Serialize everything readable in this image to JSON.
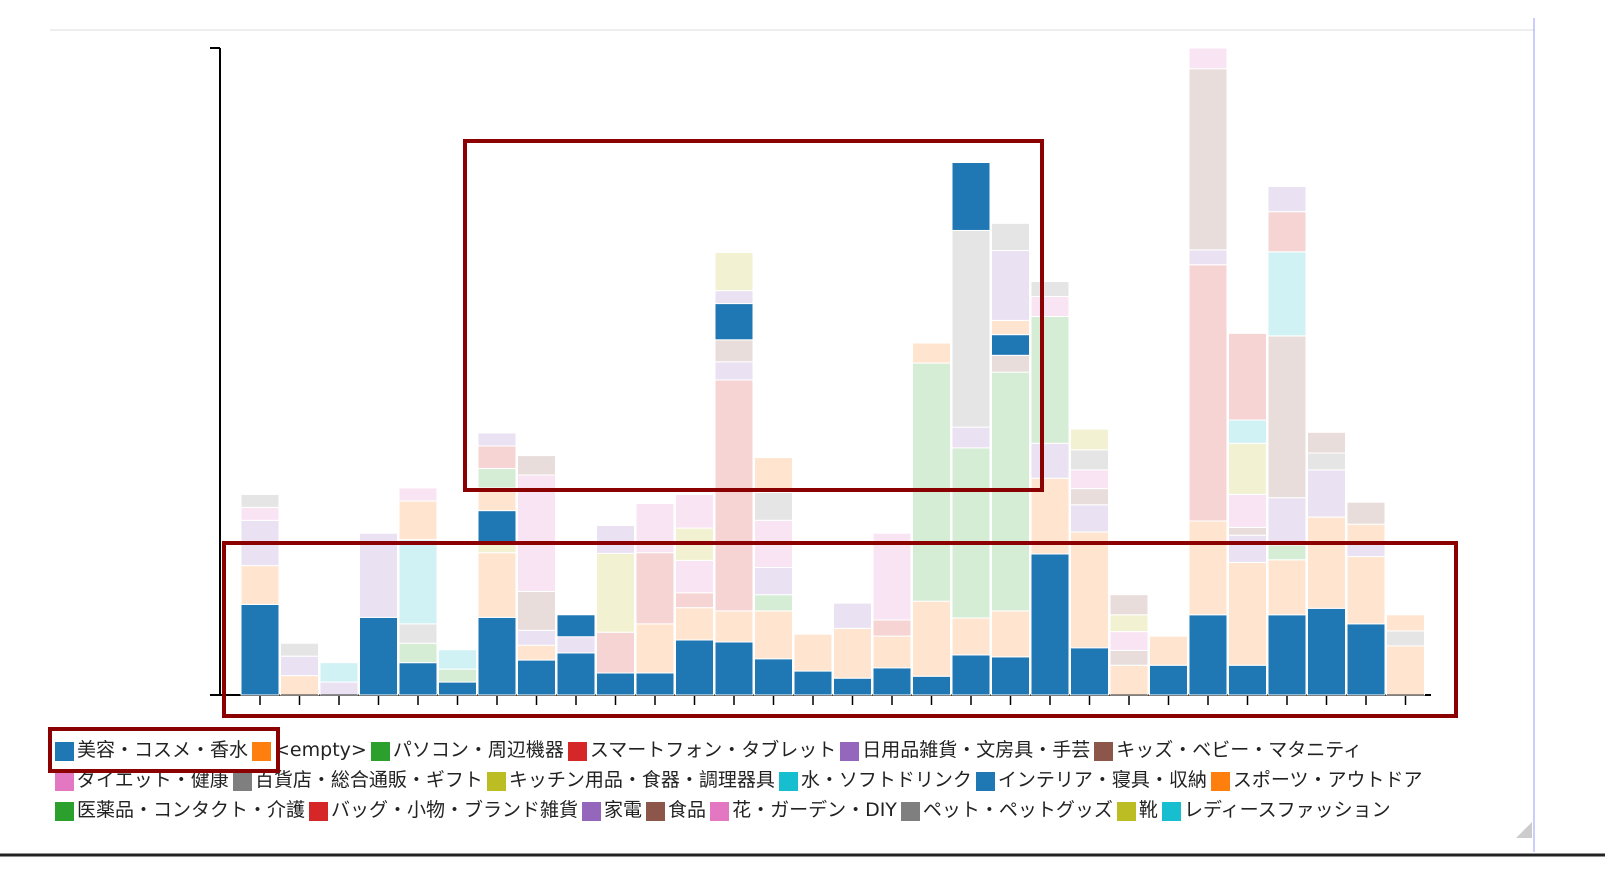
{
  "chart_data": {
    "type": "stacked_bar",
    "categories": [
      null,
      null,
      null,
      null,
      null,
      null,
      null,
      null,
      null,
      null,
      null,
      null,
      null,
      null,
      null,
      null,
      null,
      null,
      null,
      null,
      null,
      null,
      null,
      null,
      null,
      null,
      null,
      null,
      null,
      null
    ],
    "ylim": [
      0,
      100
    ],
    "highlight_color": "#1f77b4",
    "series": [
      {
        "name": "美容・コスメ・香水",
        "color": "#1f77b4",
        "values": [
          14,
          0,
          0,
          12,
          5,
          2,
          12,
          5.4,
          6.5,
          3.4,
          3.4,
          8.5,
          8.2,
          5.6,
          3.7,
          2.6,
          4.2,
          2.9,
          6.2,
          5.9,
          21.8,
          7.3,
          0,
          4.6,
          12.4,
          4.6,
          12.4,
          13.4,
          11,
          0
        ]
      },
      {
        "name": "<empty>",
        "color": "#ff7f0e",
        "values": [
          6,
          3,
          0,
          0,
          0,
          0,
          10,
          2.3,
          0,
          0,
          7.6,
          5,
          4.8,
          7.4,
          5.7,
          7.7,
          4.9,
          11.6,
          5.7,
          7.1,
          11.7,
          17.9,
          4.6,
          4.5,
          14.5,
          15.9,
          8.5,
          14.1,
          10.4,
          7.6
        ]
      },
      {
        "name": "パソコン・周辺機器",
        "color": "#2ca02c",
        "values": [
          0,
          0,
          0,
          0,
          3,
          2,
          0,
          0,
          0,
          0,
          0,
          0,
          0,
          2.5,
          0,
          0,
          0,
          36.8,
          26.3,
          36.9,
          0,
          0,
          0,
          0,
          0,
          0,
          2.3,
          0,
          0,
          0
        ]
      },
      {
        "name": "スマートフォン・タブレット",
        "color": "#d62728",
        "values": [
          0,
          0,
          0,
          0,
          0,
          0,
          0,
          0,
          0,
          6.3,
          11,
          2.3,
          35.7,
          0,
          0,
          0,
          2.5,
          0,
          0,
          0,
          0,
          0,
          0,
          0,
          39.6,
          0,
          0,
          0,
          0,
          0
        ]
      },
      {
        "name": "日用品雑貨・文房具・手芸",
        "color": "#9467bd",
        "values": [
          7,
          3,
          2,
          13,
          0,
          0,
          0,
          2.3,
          2.5,
          0,
          0,
          0,
          2.8,
          4.2,
          0,
          3.9,
          0,
          0,
          3.2,
          0,
          5.4,
          4.2,
          0,
          0,
          2.3,
          4.2,
          7.3,
          7.3,
          1.9,
          0
        ]
      },
      {
        "name": "キッズ・ベビー・マタニティ",
        "color": "#8c564b",
        "values": [
          0,
          0,
          0,
          0,
          0,
          0,
          0,
          6,
          0,
          0,
          0,
          0,
          3.4,
          0,
          0,
          0,
          0,
          0,
          0,
          2.6,
          0,
          2.5,
          2.3,
          0,
          28,
          1.2,
          25,
          0,
          0,
          0
        ]
      },
      {
        "name": "ダイエット・健康",
        "color": "#e377c2",
        "values": [
          2,
          0,
          0,
          0,
          0,
          0,
          0,
          18,
          0,
          0,
          7.6,
          5,
          0,
          7.3,
          0,
          0,
          13.4,
          0,
          0,
          0,
          0,
          2.9,
          2.9,
          0,
          3.2,
          5.1,
          0,
          0,
          0,
          0
        ]
      },
      {
        "name": "百貨店・総合通販・ギフト",
        "color": "#7f7f7f",
        "values": [
          2,
          2,
          0,
          0,
          3,
          0,
          0,
          0,
          0,
          0,
          0,
          0,
          0,
          4.3,
          0,
          0,
          0,
          0,
          30.4,
          0,
          0,
          3.1,
          0,
          0,
          0,
          0,
          0,
          2.6,
          0,
          2.3
        ]
      },
      {
        "name": "キッチン用品・食器・調理器具",
        "color": "#bcbd22",
        "values": [
          0,
          0,
          0,
          0,
          0,
          0,
          1.5,
          0,
          0,
          12.2,
          0,
          5,
          0,
          0,
          0,
          0,
          0,
          0,
          0,
          0,
          0,
          3.2,
          2.6,
          0,
          0,
          7.9,
          0,
          0,
          0,
          0
        ]
      },
      {
        "name": "水・ソフトドリンク",
        "color": "#17becf",
        "values": [
          0,
          0,
          3,
          0,
          13,
          3,
          0,
          0,
          0,
          0,
          0,
          0,
          0,
          0,
          0,
          0,
          0,
          0,
          0,
          0,
          0,
          0,
          0,
          0,
          0,
          3.6,
          13,
          0,
          0,
          0
        ]
      },
      {
        "name": "インテリア・寝具・収納",
        "color": "#1f77b4",
        "values": [
          0,
          0,
          0,
          0,
          0,
          0,
          5,
          0,
          3.4,
          0,
          0,
          0,
          5.6,
          0,
          0,
          0,
          0,
          0,
          10.5,
          3.2,
          0,
          0,
          0,
          0,
          0,
          0,
          0,
          0,
          0,
          0
        ]
      },
      {
        "name": "スポーツ・アウトドア",
        "color": "#ff7f0e",
        "values": [
          0,
          0,
          0,
          0,
          6,
          0,
          3.5,
          0,
          0,
          0,
          0,
          0,
          0,
          5.4,
          0,
          0,
          0,
          3.1,
          0,
          2.2,
          0,
          0,
          0,
          0,
          0,
          0,
          0,
          0,
          3.1,
          2.5
        ]
      },
      {
        "name": "医薬品・コンタクト・介護",
        "color": "#2ca02c",
        "values": [
          0,
          0,
          0,
          0,
          0,
          0,
          3,
          0,
          0,
          0,
          0,
          0,
          0,
          0,
          0,
          0,
          0,
          0,
          0,
          0,
          19.6,
          0,
          0,
          0,
          0,
          0,
          0,
          0,
          0,
          0
        ]
      },
      {
        "name": "バッグ・小物・ブランド雑貨",
        "color": "#d62728",
        "values": [
          0,
          0,
          0,
          0,
          0,
          0,
          3.5,
          0,
          0,
          0,
          0,
          0,
          0,
          0,
          0,
          0,
          0,
          0,
          0,
          0,
          0,
          0,
          0,
          0,
          0,
          13.4,
          6.2,
          0,
          0,
          0
        ]
      },
      {
        "name": "家電",
        "color": "#9467bd",
        "values": [
          0,
          0,
          0,
          0,
          0,
          0,
          2,
          0,
          0,
          4.3,
          0,
          0,
          2,
          0,
          0,
          0,
          0,
          0,
          0,
          10.8,
          0,
          0,
          0,
          0,
          0,
          0,
          3.9,
          0,
          0,
          0
        ]
      },
      {
        "name": "食品",
        "color": "#8c564b",
        "values": [
          0,
          0,
          0,
          0,
          0,
          0,
          0,
          3,
          0,
          0,
          0,
          0,
          0,
          0,
          0,
          0,
          0,
          0,
          0,
          0,
          0,
          0,
          3.1,
          0,
          0,
          0,
          0,
          3.2,
          3.4,
          0
        ]
      },
      {
        "name": "花・ガーデン・DIY",
        "color": "#e377c2",
        "values": [
          0,
          0,
          0,
          0,
          2,
          0,
          0,
          0,
          0,
          0,
          0,
          5.2,
          0,
          0,
          0,
          0,
          0,
          0,
          0,
          0,
          3.1,
          0,
          0,
          0,
          0,
          0,
          0,
          0,
          0,
          0
        ]
      },
      {
        "name": "ペット・ペットグッズ",
        "color": "#7f7f7f",
        "values": [
          0,
          0,
          0,
          0,
          0,
          0,
          0,
          0,
          0,
          0,
          0,
          0,
          0,
          0,
          0,
          0,
          0,
          0,
          0,
          4.2,
          2.3,
          0,
          0,
          0,
          0,
          0,
          0,
          0,
          0,
          0
        ]
      },
      {
        "name": "靴",
        "color": "#bcbd22",
        "values": [
          0,
          0,
          0,
          0,
          0,
          0,
          0,
          0,
          0,
          0,
          0,
          0,
          5.9,
          0,
          0,
          0,
          0,
          0,
          0,
          0,
          0,
          0,
          0,
          0,
          0,
          0,
          0,
          0,
          0,
          0
        ]
      },
      {
        "name": "レディースファッション",
        "color": "#17becf",
        "values": [
          0,
          0,
          0,
          0,
          0,
          0,
          0,
          0,
          0,
          0,
          0,
          0,
          0,
          0,
          0,
          0,
          0,
          0,
          0,
          0,
          0,
          0,
          0,
          0,
          0,
          0,
          0,
          0,
          0,
          0
        ]
      }
    ]
  }
}
